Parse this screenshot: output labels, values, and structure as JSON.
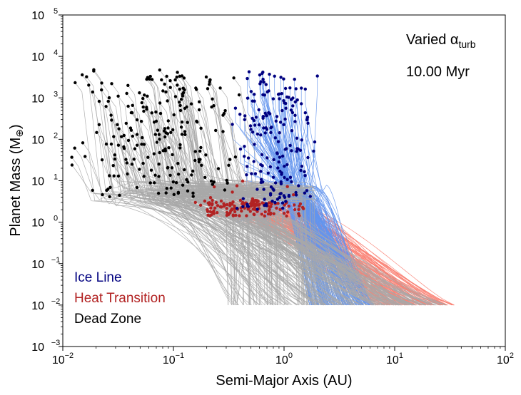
{
  "chart_data": {
    "type": "scatter",
    "xscale": "log",
    "yscale": "log",
    "xlim": [
      0.01,
      100
    ],
    "ylim": [
      0.001,
      100000
    ],
    "xlabel": "Semi-Major Axis (AU)",
    "ylabel_main": "Planet Mass (M",
    "ylabel_symbol": "⊕",
    "ylabel_close": ")",
    "x_ticks": [
      {
        "base": "10",
        "exp": "−2",
        "value": 0.01
      },
      {
        "base": "10",
        "exp": "−1",
        "value": 0.1
      },
      {
        "base": "10",
        "exp": "0",
        "value": 1
      },
      {
        "base": "10",
        "exp": "1",
        "value": 10
      },
      {
        "base": "10",
        "exp": "2",
        "value": 100
      }
    ],
    "y_ticks": [
      {
        "base": "10",
        "exp": "−3",
        "value": 0.001
      },
      {
        "base": "10",
        "exp": "−2",
        "value": 0.01
      },
      {
        "base": "10",
        "exp": "−1",
        "value": 0.1
      },
      {
        "base": "10",
        "exp": "0",
        "value": 1
      },
      {
        "base": "10",
        "exp": "1",
        "value": 10
      },
      {
        "base": "10",
        "exp": "2",
        "value": 100
      },
      {
        "base": "10",
        "exp": "3",
        "value": 1000
      },
      {
        "base": "10",
        "exp": "4",
        "value": 10000
      },
      {
        "base": "10",
        "exp": "5",
        "value": 100000
      }
    ],
    "annotation_varied": "Varied α",
    "annotation_varied_sub": "turb",
    "annotation_time": "10.00 Myr",
    "legend": [
      {
        "label": "Ice Line",
        "color": "#000080"
      },
      {
        "label": "Heat Transition",
        "color": "#b22222"
      },
      {
        "label": "Dead Zone",
        "color": "#000000"
      }
    ],
    "series": [
      {
        "name": "Ice Line",
        "point_color": "#000080",
        "track_color": "#6495ed",
        "start_a_range": [
          1.7,
          6.5
        ],
        "start_mass": 0.01,
        "final_a_range": [
          0.3,
          2.2
        ],
        "final_mass_range": [
          2,
          4500
        ]
      },
      {
        "name": "Heat Transition",
        "point_color": "#b22222",
        "track_color": "#fa8072",
        "start_a_range": [
          6,
          35
        ],
        "start_mass": 0.01,
        "final_a_range": [
          0.06,
          1.9
        ],
        "final_mass_range": [
          1.4,
          10
        ]
      },
      {
        "name": "Dead Zone",
        "point_color": "#000000",
        "track_color": "#a9a9a9",
        "start_a_range": [
          0.3,
          30
        ],
        "start_mass": 0.01,
        "final_a_range": [
          0.012,
          0.42
        ],
        "final_mass_range": [
          4,
          5000
        ]
      }
    ]
  }
}
